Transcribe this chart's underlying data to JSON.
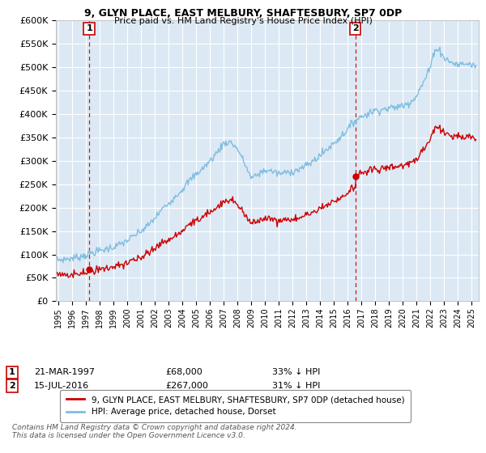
{
  "title": "9, GLYN PLACE, EAST MELBURY, SHAFTESBURY, SP7 0DP",
  "subtitle": "Price paid vs. HM Land Registry's House Price Index (HPI)",
  "legend_line1": "9, GLYN PLACE, EAST MELBURY, SHAFTESBURY, SP7 0DP (detached house)",
  "legend_line2": "HPI: Average price, detached house, Dorset",
  "transaction1_date": "21-MAR-1997",
  "transaction1_price": "£68,000",
  "transaction1_hpi": "33% ↓ HPI",
  "transaction1_year": 1997.22,
  "transaction1_value": 68000,
  "transaction2_date": "15-JUL-2016",
  "transaction2_price": "£267,000",
  "transaction2_hpi": "31% ↓ HPI",
  "transaction2_year": 2016.54,
  "transaction2_value": 267000,
  "copyright": "Contains HM Land Registry data © Crown copyright and database right 2024.\nThis data is licensed under the Open Government Licence v3.0.",
  "ylim": [
    0,
    600000
  ],
  "xlim_start": 1994.8,
  "xlim_end": 2025.5,
  "bg_color": "#DCE9F5",
  "fig_color": "#FFFFFF",
  "grid_color": "#FFFFFF",
  "hpi_line_color": "#7FBDE0",
  "price_line_color": "#CC0000",
  "dashed_line_color": "#CC0000"
}
